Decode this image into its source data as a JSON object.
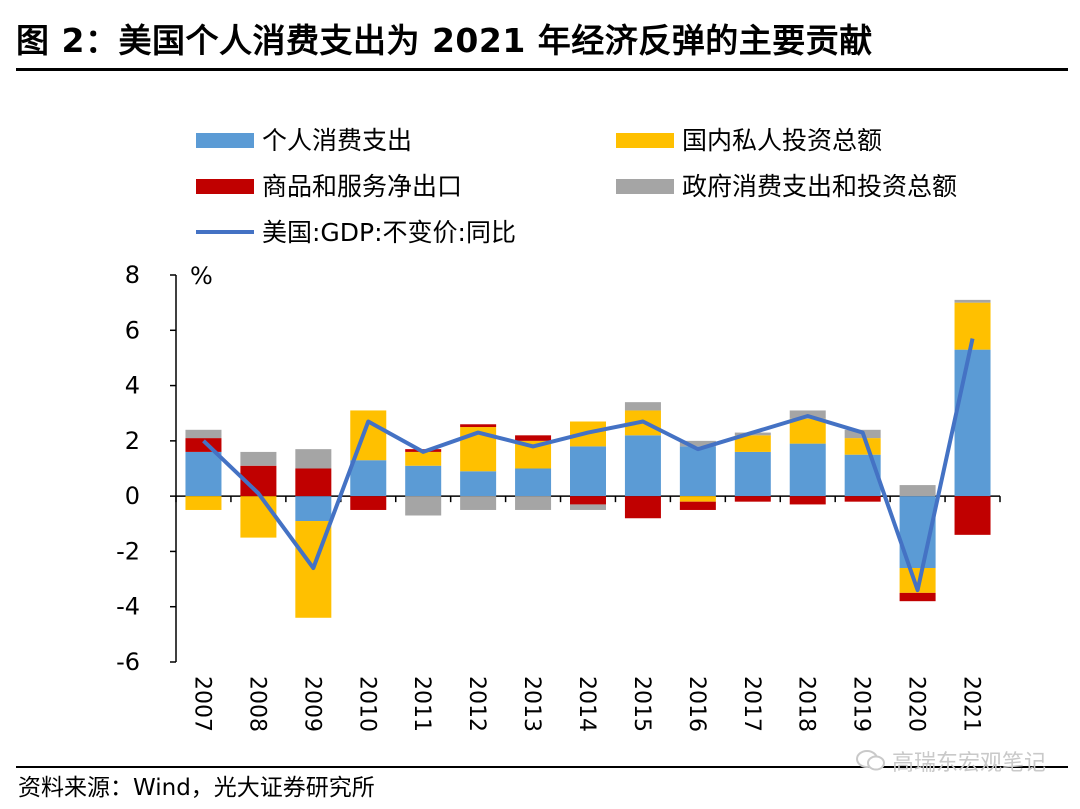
{
  "figure": {
    "title": "图 2：美国个人消费支出为 2021 年经济反弹的主要贡献",
    "source": "资料来源：Wind，光大证券研究所",
    "watermark": "高瑞东宏观笔记",
    "watermark_icon": "wechat-icon"
  },
  "chart_data": {
    "type": "bar",
    "stacked": true,
    "title": "",
    "xlabel": "",
    "ylabel": "%",
    "ylim": [
      -6,
      8
    ],
    "yticks": [
      "8",
      "6",
      "4",
      "2",
      "0",
      "-2",
      "-4",
      "-6"
    ],
    "ytick_values": [
      8,
      6,
      4,
      2,
      0,
      -2,
      -4,
      -6
    ],
    "categories": [
      "2007",
      "2008",
      "2009",
      "2010",
      "2011",
      "2012",
      "2013",
      "2014",
      "2015",
      "2016",
      "2017",
      "2018",
      "2019",
      "2020",
      "2021"
    ],
    "legend_placement": "top",
    "grid": false,
    "series": [
      {
        "name": "个人消费支出",
        "type": "bar",
        "color": "#5b9bd5",
        "values": [
          1.6,
          0.0,
          -0.9,
          1.3,
          1.1,
          0.9,
          1.0,
          1.8,
          2.2,
          1.8,
          1.6,
          1.9,
          1.5,
          -2.6,
          5.3
        ]
      },
      {
        "name": "国内私人投资总额",
        "type": "bar",
        "color": "#ffc000",
        "values": [
          -0.5,
          -1.5,
          -3.5,
          1.8,
          0.5,
          1.6,
          1.0,
          0.9,
          0.9,
          -0.2,
          0.6,
          0.9,
          0.6,
          -0.9,
          1.7
        ]
      },
      {
        "name": "商品和服务净出口",
        "type": "bar",
        "color": "#c00000",
        "values": [
          0.5,
          1.1,
          1.0,
          -0.5,
          0.1,
          0.1,
          0.2,
          -0.3,
          -0.8,
          -0.3,
          -0.2,
          -0.3,
          -0.2,
          -0.3,
          -1.4
        ]
      },
      {
        "name": "政府消费支出和投资总额",
        "type": "bar",
        "color": "#a5a5a5",
        "values": [
          0.3,
          0.5,
          0.7,
          0.0,
          -0.7,
          -0.5,
          -0.5,
          -0.2,
          0.3,
          0.2,
          0.1,
          0.3,
          0.3,
          0.4,
          0.1
        ]
      },
      {
        "name": "美国:GDP:不变价:同比",
        "type": "line",
        "color": "#4472c4",
        "values": [
          2.0,
          0.1,
          -2.6,
          2.7,
          1.6,
          2.3,
          1.8,
          2.3,
          2.7,
          1.7,
          2.3,
          2.9,
          2.3,
          -3.4,
          5.7
        ]
      }
    ]
  }
}
